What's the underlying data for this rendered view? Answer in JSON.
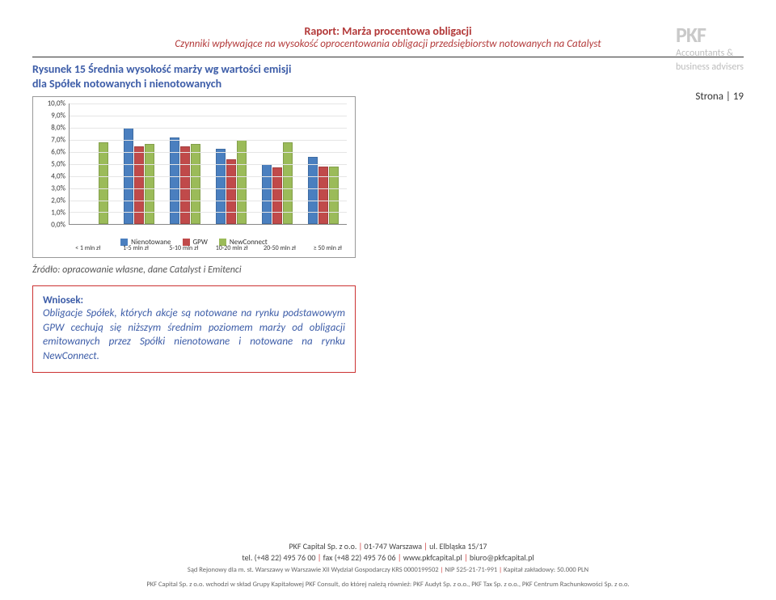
{
  "header": {
    "title": "Raport: Marża procentowa obligacji",
    "subtitle": "Czynniki wpływające na wysokość oprocentowania obligacji przedsiębiorstw notowanych na Catalyst"
  },
  "logo": {
    "name": "PKF",
    "tagline1": "Accountants &",
    "tagline2": "business advisers"
  },
  "page_number": "Strona | 19",
  "figure": {
    "title_line1": "Rysunek 15 Średnia wysokość marży wg wartości emisji",
    "title_line2": "dla Spółek notowanych i nienotowanych"
  },
  "chart": {
    "type": "bar",
    "y_ticks": [
      "10,0%",
      "9,0%",
      "8,0%",
      "7,0%",
      "6,0%",
      "5,0%",
      "4,0%",
      "3,0%",
      "2,0%",
      "1,0%",
      "0,0%"
    ],
    "y_max": 10,
    "categories": [
      "< 1 mln zł",
      "1-5 mln zł",
      "5-10 mln zł",
      "10-20 mln zł",
      "20-50 mln zł",
      "≥ 50 mln zł"
    ],
    "series": [
      {
        "name": "Nienotowane",
        "color": "#4a7fbf",
        "values": [
          null,
          8.0,
          7.2,
          6.3,
          5.0,
          5.6
        ]
      },
      {
        "name": "GPW",
        "color": "#c04a4a",
        "values": [
          null,
          6.5,
          6.5,
          5.4,
          4.7,
          4.8
        ]
      },
      {
        "name": "NewConnect",
        "color": "#9bbb59",
        "values": [
          6.8,
          6.7,
          6.7,
          7.0,
          6.8,
          4.8
        ]
      }
    ],
    "legend": [
      {
        "label": "Nienotowane",
        "color": "#4a7fbf"
      },
      {
        "label": "GPW",
        "color": "#c04a4a"
      },
      {
        "label": "NewConnect",
        "color": "#9bbb59"
      }
    ]
  },
  "source": "Źródło: opracowanie własne, dane Catalyst i Emitenci",
  "conclusion": {
    "label": "Wniosek:",
    "text": "Obligacje Spółek, których akcje są notowane na rynku podstawowym GPW cechują się niższym średnim poziomem marży od obligacji emitowanych przez Spółki nienotowane i notowane na rynku NewConnect."
  },
  "footer": {
    "company": "PKF Capital Sp. z o.o.",
    "address": "01-747 Warszawa",
    "street": "ul. Elbląska 15/17",
    "tel": "tel. (+48 22) 495 76 00",
    "fax": "fax (+48 22) 495 76 06",
    "www": "www.pkfcapital.pl",
    "email": "biuro@pkfcapital.pl",
    "legal": "Sąd Rejonowy dla m. st. Warszawy w Warszawie XII Wydział Gospodarczy KRS 0000199502",
    "nip": "NIP 525-21-71-991",
    "capital": "Kapitał zakładowy: 50.000 PLN",
    "group": "PKF Capital Sp. z o.o. wchodzi w skład Grupy Kapitałowej PKF Consult, do której należą również: PKF Audyt Sp. z o.o., PKF Tax Sp. z o.o., PKF Centrum Rachunkowości Sp. z o.o."
  }
}
